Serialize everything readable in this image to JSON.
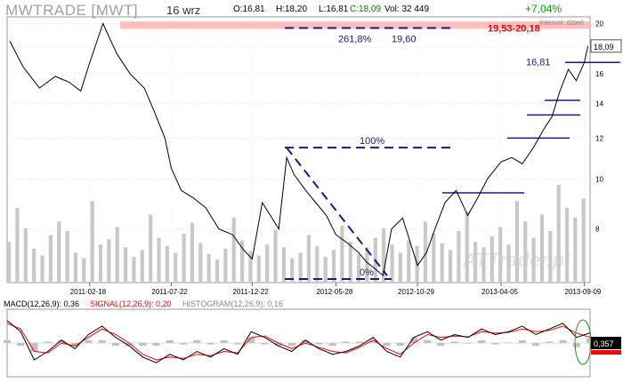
{
  "header": {
    "ticker": "MWTRADE [MWT]",
    "date": "16 wrz",
    "open": "O:16,81",
    "high": "H:18,20",
    "low": "L:16,81",
    "close": "C:18,09",
    "volume": "Vol: 32 449",
    "change": "+7,04%",
    "interval": "Interval: dzień"
  },
  "indicators": {
    "macd_label": "MACD(12,26,9): 0,36",
    "signal_label": "SIGNAL(12,26,9): 0,20",
    "histogram_label": "HISTOGRAM(12,26,9): 0,16",
    "macd_value_badge": "0,357"
  },
  "watermark": "ATTrader.pl",
  "colors": {
    "price_line": "#000000",
    "volume_bars": "#c8c8c8",
    "resistance_band": "#ffb3b3",
    "resistance_text": "#e00000",
    "fib_lines": "#1a1a80",
    "signal_line": "#ff0000",
    "change_positive": "#00a000",
    "ellipse": "#2e8b2e"
  },
  "chart_data": [
    {
      "type": "line",
      "title": "MWTRADE [MWT]",
      "x_tick_labels": [
        "2011-02-18",
        "2011-07-22",
        "2011-12-22",
        "2012-05-28",
        "2012-10-29",
        "2013-04-05",
        "2013-09-09"
      ],
      "y_tick_labels": [
        "8",
        "10",
        "12",
        "14",
        "16",
        "18",
        "20"
      ],
      "ylim": [
        6.3,
        20.6
      ],
      "y_scale": "log",
      "grid": true,
      "last_price_label": "18,09",
      "series": [
        {
          "x": [
            "2010-09-20",
            "2010-10-15",
            "2010-11-15",
            "2010-12-15",
            "2011-01-10",
            "2011-02-01",
            "2011-02-18",
            "2011-03-15",
            "2011-04-10",
            "2011-05-05",
            "2011-06-01",
            "2011-06-20",
            "2011-07-10",
            "2011-07-22",
            "2011-08-10",
            "2011-09-01",
            "2011-09-25",
            "2011-10-20",
            "2011-11-15",
            "2011-12-05",
            "2011-12-22",
            "2012-01-10",
            "2012-01-25",
            "2012-02-10",
            "2012-02-25",
            "2012-03-10",
            "2012-04-01",
            "2012-04-20",
            "2012-05-10",
            "2012-05-28",
            "2012-06-20",
            "2012-07-10",
            "2012-07-25",
            "2012-08-10",
            "2012-08-25",
            "2012-09-10",
            "2012-10-01",
            "2012-10-29",
            "2012-11-15",
            "2012-12-01",
            "2012-12-20",
            "2013-01-10",
            "2013-02-01",
            "2013-02-20",
            "2013-03-10",
            "2013-04-05",
            "2013-04-25",
            "2013-05-15",
            "2013-06-05",
            "2013-06-25",
            "2013-07-10",
            "2013-07-25",
            "2013-08-10",
            "2013-08-25",
            "2013-09-09",
            "2013-09-16"
          ],
          "values": [
            18.5,
            16.5,
            15.0,
            15.8,
            15.4,
            14.8,
            16.8,
            20.0,
            17.5,
            16.0,
            15.0,
            13.5,
            12.0,
            10.5,
            9.5,
            9.2,
            8.8,
            8.0,
            7.8,
            7.3,
            7.0,
            9.0,
            8.5,
            8.0,
            11.0,
            10.2,
            9.5,
            9.0,
            8.5,
            7.8,
            7.5,
            7.2,
            6.9,
            6.7,
            6.5,
            8.0,
            8.4,
            6.8,
            7.2,
            8.0,
            9.0,
            9.5,
            8.5,
            9.2,
            10.0,
            10.8,
            11.0,
            10.7,
            11.5,
            12.5,
            13.2,
            14.8,
            16.3,
            15.5,
            16.8,
            18.09
          ]
        }
      ],
      "horizontal_lines": [
        {
          "label": "19,60",
          "value": 19.6
        },
        {
          "label": "16,81",
          "value": 16.81
        },
        {
          "value": 14.2
        },
        {
          "value": 13.3
        },
        {
          "value": 12.0
        },
        {
          "value": 9.4
        }
      ],
      "resistance_band": {
        "label": "19,53-20,18",
        "low": 19.53,
        "high": 20.18
      },
      "fibonacci": [
        {
          "label": "0%",
          "value": 6.4
        },
        {
          "label": "100%",
          "value": 11.5
        },
        {
          "label": "261,8%",
          "value": 19.6
        }
      ]
    },
    {
      "type": "bar",
      "title": "",
      "xlabel": "",
      "ylabel": "",
      "note": "trading volume (unscaled)",
      "values": [
        30,
        55,
        40,
        25,
        20,
        35,
        45,
        38,
        22,
        18,
        60,
        28,
        32,
        41,
        26,
        19,
        24,
        50,
        33,
        27,
        22,
        36,
        44,
        29,
        21,
        17,
        25,
        48,
        31,
        23,
        20,
        28,
        39,
        26,
        18,
        22,
        35,
        27,
        19,
        24,
        42,
        30,
        21,
        26,
        33,
        40,
        28,
        22,
        31,
        27,
        45,
        36,
        29,
        24,
        38,
        52,
        30,
        26,
        34,
        41,
        28,
        60,
        45,
        33,
        50,
        38,
        72,
        55,
        48,
        62
      ]
    },
    {
      "type": "line",
      "title": "MACD(12,26,9)",
      "ylim": [
        -1.2,
        1.2
      ],
      "last_value_label": "0,357",
      "series": [
        {
          "name": "MACD(12,26,9)",
          "values": [
            0.8,
            0.4,
            -0.6,
            -0.3,
            0.1,
            -0.2,
            0.3,
            0.6,
            0.2,
            -0.1,
            -0.5,
            -0.7,
            -0.4,
            -0.6,
            -0.3,
            -0.5,
            -0.2,
            -0.4,
            0.4,
            0.2,
            -0.1,
            -0.3,
            0.1,
            -0.2,
            -0.4,
            -0.3,
            -0.1,
            0.2,
            -0.3,
            -0.5,
            0.2,
            0.4,
            0.1,
            0.3,
            0.2,
            0.5,
            0.3,
            0.4,
            0.6,
            0.3,
            0.5,
            0.7,
            0.2,
            0.36
          ]
        },
        {
          "name": "SIGNAL(12,26,9)",
          "values": [
            0.7,
            0.5,
            -0.3,
            -0.35,
            0.0,
            -0.1,
            0.2,
            0.5,
            0.3,
            0.0,
            -0.4,
            -0.6,
            -0.5,
            -0.55,
            -0.4,
            -0.45,
            -0.3,
            -0.35,
            0.2,
            0.25,
            0.0,
            -0.2,
            0.0,
            -0.15,
            -0.3,
            -0.35,
            -0.15,
            0.1,
            -0.2,
            -0.4,
            0.0,
            0.3,
            0.2,
            0.25,
            0.22,
            0.4,
            0.35,
            0.38,
            0.5,
            0.4,
            0.45,
            0.6,
            0.35,
            0.2
          ]
        },
        {
          "name": "HISTOGRAM(12,26,9)",
          "values": [
            0.1,
            -0.1,
            -0.3,
            0.05,
            0.1,
            -0.1,
            0.1,
            0.1,
            -0.1,
            -0.1,
            -0.1,
            -0.1,
            0.1,
            -0.05,
            0.1,
            -0.05,
            0.1,
            -0.05,
            0.2,
            -0.05,
            -0.1,
            -0.1,
            0.1,
            -0.05,
            -0.1,
            0.05,
            0.05,
            0.1,
            -0.1,
            -0.1,
            0.2,
            0.1,
            -0.1,
            0.05,
            -0.02,
            0.1,
            -0.05,
            0.02,
            0.1,
            -0.1,
            0.05,
            0.1,
            -0.15,
            0.16
          ]
        }
      ]
    }
  ]
}
